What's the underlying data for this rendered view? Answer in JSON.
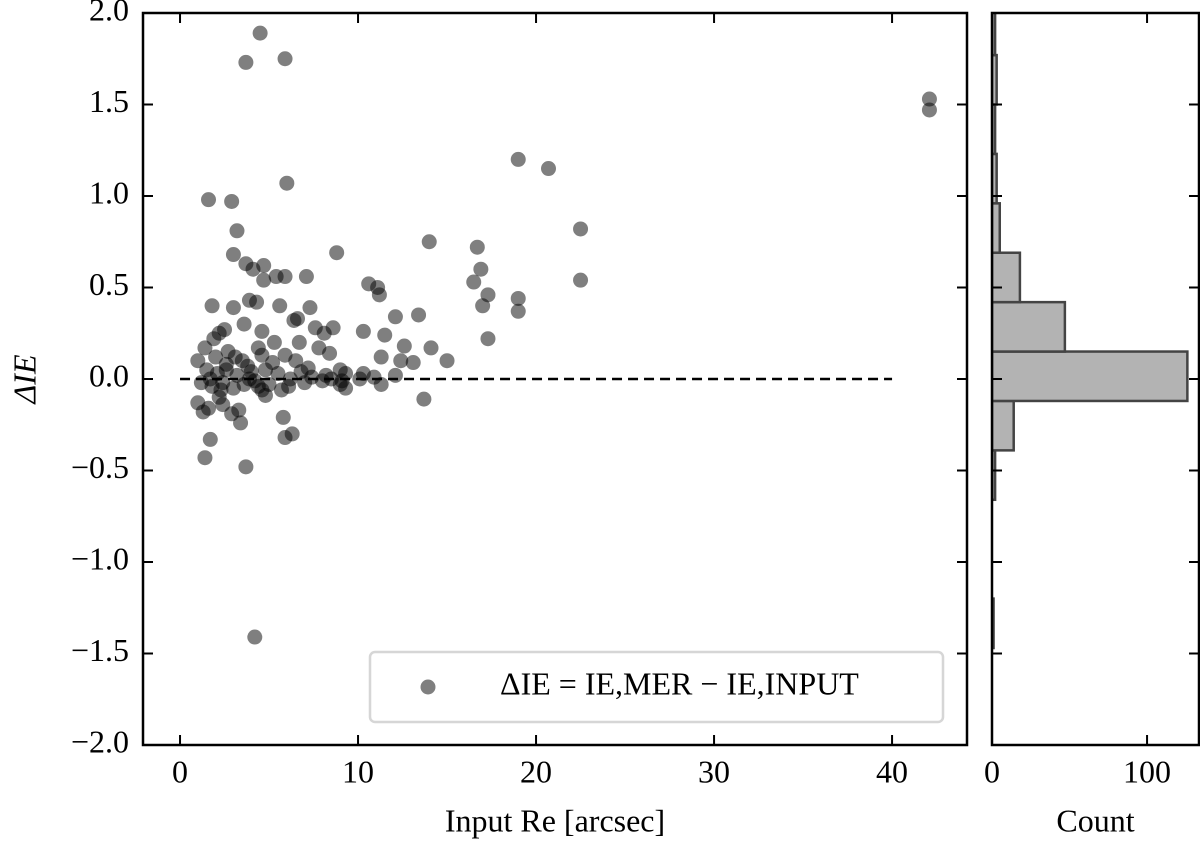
{
  "chart_data": [
    {
      "type": "scatter",
      "x_label": "Input Re [arcsec]",
      "y_label": "ΔIE",
      "xlim": [
        -2.08,
        44.21
      ],
      "ylim": [
        -2,
        2
      ],
      "xticks": [
        0,
        10,
        20,
        30,
        40
      ],
      "yticks": [
        {
          "value": -2,
          "label": "−2.0"
        },
        {
          "value": -1.5,
          "label": "−1.5"
        },
        {
          "value": -1,
          "label": "−1.0"
        },
        {
          "value": -0.5,
          "label": "−0.5"
        },
        {
          "value": 0,
          "label": "0.0"
        },
        {
          "value": 0.5,
          "label": "0.5"
        },
        {
          "value": 1,
          "label": "1.0"
        },
        {
          "value": 1.5,
          "label": "1.5"
        },
        {
          "value": 2,
          "label": "2.0"
        }
      ],
      "legend": "lower right",
      "reference_line": {
        "y": 0,
        "x": [
          0,
          40
        ]
      },
      "series": [
        {
          "name": "ΔIE = IE,MER − IE,INPUT",
          "color": "#000000",
          "alpha": 0.5,
          "x": [
            4.5,
            3.7,
            5.9,
            42.1,
            42.1,
            19,
            20.7,
            6,
            1.6,
            2.9,
            3.2,
            22.5,
            14,
            16.7,
            8.8,
            3,
            16.9,
            3.7,
            4.7,
            4.1,
            5.4,
            5.9,
            7.1,
            22.5,
            4.7,
            16.5,
            10.6,
            11.1,
            11.2,
            17.3,
            19,
            3.9,
            4.3,
            5.6,
            7.3,
            1.8,
            3,
            17,
            19,
            6.6,
            6.4,
            8.6,
            12.1,
            13.4,
            10.3,
            8.1,
            11.5,
            4.6,
            2.5,
            2.2,
            3.6,
            7.6,
            17.3,
            4.4,
            5.3,
            7.8,
            14.1,
            12.6,
            8.4,
            11.3,
            12.4,
            15,
            13.1,
            9,
            9.3,
            10.3,
            1.4,
            1.9,
            1,
            2.7,
            3.5,
            6.5,
            5.9,
            1.5,
            2.1,
            2.6,
            3.2,
            4,
            4.8,
            5.5,
            6.8,
            7.4,
            8.2,
            9.1,
            10.1,
            11.3,
            12.1,
            1.2,
            1.8,
            2.4,
            3,
            3.6,
            4.2,
            5,
            6.1,
            7,
            8,
            9.3,
            1,
            1.3,
            1.6,
            2.2,
            2.9,
            3.3,
            3.4,
            4.6,
            4.8,
            5.8,
            13.7,
            1.7,
            1.4,
            3.7,
            5.9,
            6.3,
            4.2,
            2.4,
            2.6,
            2,
            1.7,
            2.3,
            3.1,
            4.6,
            5.2,
            6.2,
            7.2,
            8.5,
            3.8,
            4.4,
            9,
            6.7,
            10.9,
            5.7,
            3.9
          ],
          "values": [
            1.89,
            1.73,
            1.75,
            1.53,
            1.47,
            1.2,
            1.15,
            1.07,
            0.98,
            0.97,
            0.81,
            0.82,
            0.75,
            0.72,
            0.69,
            0.68,
            0.6,
            0.63,
            0.62,
            0.6,
            0.56,
            0.56,
            0.56,
            0.54,
            0.54,
            0.53,
            0.52,
            0.5,
            0.46,
            0.46,
            0.44,
            0.43,
            0.42,
            0.4,
            0.39,
            0.4,
            0.39,
            0.4,
            0.37,
            0.33,
            0.32,
            0.28,
            0.34,
            0.35,
            0.26,
            0.25,
            0.24,
            0.26,
            0.27,
            0.25,
            0.3,
            0.28,
            0.22,
            0.17,
            0.2,
            0.17,
            0.17,
            0.18,
            0.14,
            0.12,
            0.1,
            0.1,
            0.09,
            0.05,
            0.03,
            0.03,
            0.17,
            0.22,
            0.1,
            0.15,
            0.1,
            0.1,
            0.13,
            0.05,
            0.03,
            0.05,
            0.02,
            0.04,
            0.05,
            0.03,
            0.04,
            0.01,
            0.02,
            -0.01,
            0,
            -0.03,
            0.02,
            -0.02,
            -0.04,
            -0.02,
            -0.05,
            -0.03,
            -0.01,
            -0.03,
            -0.04,
            -0.02,
            -0.01,
            -0.05,
            -0.13,
            -0.18,
            -0.16,
            -0.1,
            -0.19,
            -0.17,
            -0.24,
            -0.06,
            -0.09,
            -0.21,
            -0.11,
            -0.33,
            -0.43,
            -0.48,
            -0.32,
            -0.3,
            -1.41,
            -0.14,
            0.08,
            0.12,
            0,
            -0.06,
            0.12,
            0.13,
            0.09,
            0,
            0.06,
            0,
            0.07,
            -0.04,
            -0.03,
            0.2,
            0.01,
            -0.06,
            0
          ]
        }
      ]
    },
    {
      "type": "histogram",
      "orientation": "horizontal",
      "x_label": "Count",
      "xlim": [
        0,
        133.5
      ],
      "ylim": [
        -2,
        2
      ],
      "xticks": [
        0,
        100
      ],
      "yticks": [
        -2,
        -1.5,
        -1,
        -0.5,
        0,
        0.5,
        1,
        1.5,
        2
      ],
      "color": "#b3b3b3",
      "edgecolor": "#444444",
      "bins": [
        -1.47,
        -1.2,
        -0.93,
        -0.66,
        -0.39,
        -0.12,
        0.15,
        0.42,
        0.69,
        0.96,
        1.23,
        1.5,
        1.77,
        2.04
      ],
      "values": [
        1,
        0,
        0,
        2,
        14,
        126,
        47,
        18,
        5,
        3,
        2,
        3,
        2
      ]
    }
  ]
}
